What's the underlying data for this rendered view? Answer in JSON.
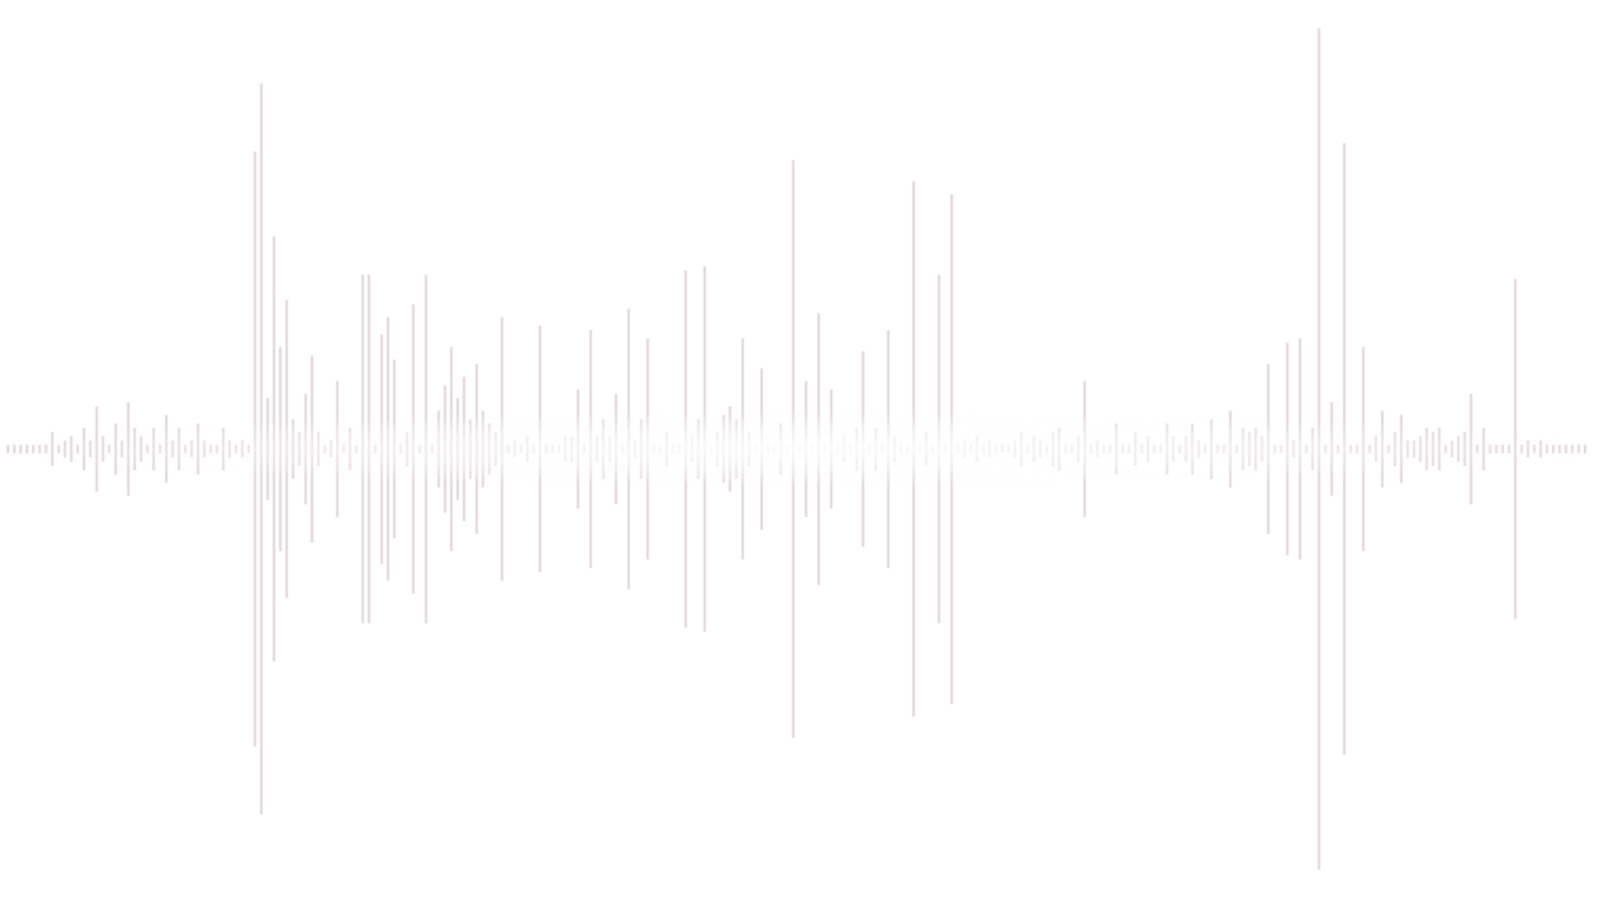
{
  "waveform": {
    "icon": "audio-waveform-icon",
    "bar_color": "#e2d6da",
    "glow_color": "#ffffff",
    "amplitudes": [
      0.01,
      0.01,
      0.01,
      0.01,
      0.01,
      0.01,
      0.01,
      0.04,
      0.01,
      0.02,
      0.03,
      0.01,
      0.05,
      0.02,
      0.1,
      0.03,
      0.01,
      0.06,
      0.02,
      0.11,
      0.05,
      0.03,
      0.01,
      0.05,
      0.01,
      0.08,
      0.02,
      0.05,
      0.01,
      0.02,
      0.06,
      0.02,
      0.01,
      0.01,
      0.05,
      0.02,
      0.01,
      0.02,
      0.01,
      0.7,
      0.86,
      0.12,
      0.5,
      0.24,
      0.35,
      0.07,
      0.04,
      0.13,
      0.22,
      0.04,
      0.01,
      0.02,
      0.16,
      0.01,
      0.05,
      0.01,
      0.41,
      0.41,
      0.01,
      0.27,
      0.31,
      0.21,
      0.01,
      0.04,
      0.34,
      0.01,
      0.41,
      0.01,
      0.09,
      0.15,
      0.24,
      0.12,
      0.17,
      0.07,
      0.2,
      0.09,
      0.06,
      0.04,
      0.31,
      0.01,
      0.02,
      0.01,
      0.03,
      0.01,
      0.29,
      0.01,
      0.01,
      0.01,
      0.03,
      0.03,
      0.14,
      0.01,
      0.28,
      0.03,
      0.07,
      0.03,
      0.13,
      0.01,
      0.33,
      0.02,
      0.07,
      0.26,
      0.01,
      0.01,
      0.04,
      0.01,
      0.01,
      0.42,
      0.03,
      0.07,
      0.43,
      0.01,
      0.04,
      0.08,
      0.1,
      0.07,
      0.26,
      0.04,
      0.01,
      0.19,
      0.01,
      0.01,
      0.06,
      0.01,
      0.68,
      0.01,
      0.16,
      0.01,
      0.32,
      0.01,
      0.14,
      0.01,
      0.03,
      0.01,
      0.05,
      0.23,
      0.01,
      0.05,
      0.01,
      0.28,
      0.03,
      0.01,
      0.01,
      0.63,
      0.01,
      0.04,
      0.01,
      0.41,
      0.01,
      0.6,
      0.01,
      0.02,
      0.01,
      0.03,
      0.01,
      0.02,
      0.01,
      0.01,
      0.01,
      0.02,
      0.04,
      0.01,
      0.03,
      0.02,
      0.01,
      0.04,
      0.05,
      0.01,
      0.01,
      0.03,
      0.16,
      0.01,
      0.02,
      0.01,
      0.01,
      0.06,
      0.01,
      0.01,
      0.04,
      0.01,
      0.03,
      0.01,
      0.01,
      0.06,
      0.03,
      0.01,
      0.03,
      0.06,
      0.02,
      0.01,
      0.07,
      0.01,
      0.01,
      0.09,
      0.01,
      0.05,
      0.04,
      0.05,
      0.03,
      0.2,
      0.01,
      0.01,
      0.25,
      0.02,
      0.26,
      0.01,
      0.05,
      0.99,
      0.01,
      0.11,
      0.01,
      0.72,
      0.01,
      0.01,
      0.24,
      0.01,
      0.03,
      0.09,
      0.01,
      0.04,
      0.08,
      0.02,
      0.02,
      0.03,
      0.05,
      0.04,
      0.05,
      0.01,
      0.02,
      0.03,
      0.04,
      0.13,
      0.01,
      0.05,
      0.01,
      0.01,
      0.01,
      0.01,
      0.4,
      0.01,
      0.02,
      0.01,
      0.02,
      0.01,
      0.01,
      0.01,
      0.01,
      0.01,
      0.01,
      0.01
    ]
  }
}
